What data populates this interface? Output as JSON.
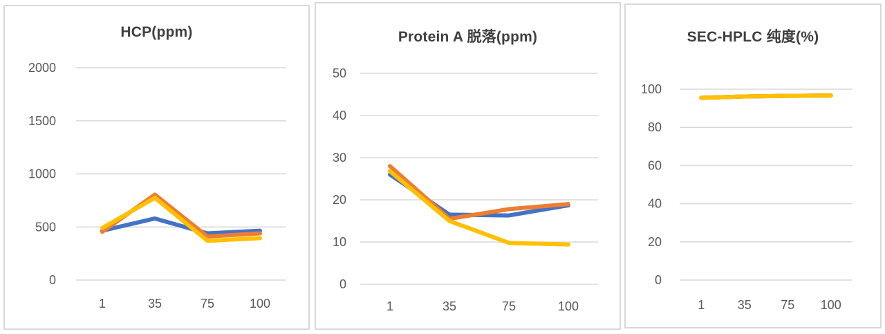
{
  "style": {
    "grid_color": "#d9d9d9",
    "tick_color": "#595959",
    "title_color": "#3f3f3f",
    "series_blue": "#4472C4",
    "series_orange": "#ED7D31",
    "series_yellow": "#FFC000"
  },
  "chart_data": [
    {
      "type": "line",
      "title": "HCP(ppm)",
      "xlabel": "",
      "ylabel": "",
      "categories": [
        "1",
        "35",
        "75",
        "100"
      ],
      "yticks": [
        0,
        500,
        1000,
        1500,
        2000
      ],
      "ylim": [
        0,
        2000
      ],
      "grid": true,
      "legend_position": "none",
      "series": [
        {
          "name": "series-blue",
          "color": "#4472C4",
          "values": [
            465,
            580,
            440,
            465
          ]
        },
        {
          "name": "series-orange",
          "color": "#ED7D31",
          "values": [
            455,
            805,
            410,
            440
          ]
        },
        {
          "name": "series-yellow",
          "color": "#FFC000",
          "values": [
            490,
            775,
            370,
            395
          ]
        }
      ]
    },
    {
      "type": "line",
      "title": "Protein A 脱落(ppm)",
      "xlabel": "",
      "ylabel": "",
      "categories": [
        "1",
        "35",
        "75",
        "100"
      ],
      "yticks": [
        0,
        10,
        20,
        30,
        40,
        50
      ],
      "ylim": [
        0,
        50
      ],
      "grid": true,
      "legend_position": "none",
      "series": [
        {
          "name": "series-blue",
          "color": "#4472C4",
          "values": [
            26,
            16.5,
            16.3,
            18.7
          ]
        },
        {
          "name": "series-orange",
          "color": "#ED7D31",
          "values": [
            28,
            15.5,
            17.8,
            19
          ]
        },
        {
          "name": "series-yellow",
          "color": "#FFC000",
          "values": [
            26.8,
            15,
            9.8,
            9.4
          ]
        }
      ]
    },
    {
      "type": "line",
      "title": "SEC-HPLC 纯度(%)",
      "xlabel": "",
      "ylabel": "",
      "categories": [
        "1",
        "35",
        "75",
        "100"
      ],
      "yticks": [
        0,
        20,
        40,
        60,
        80,
        100
      ],
      "ylim": [
        0,
        100
      ],
      "grid": true,
      "legend_position": "none",
      "series": [
        {
          "name": "series-blue",
          "color": "#4472C4",
          "values": [
            95.5,
            96.2,
            96.5,
            96.7
          ]
        },
        {
          "name": "series-orange",
          "color": "#ED7D31",
          "values": [
            95.5,
            96.2,
            96.5,
            96.7
          ]
        },
        {
          "name": "series-yellow",
          "color": "#FFC000",
          "values": [
            95.5,
            96.2,
            96.5,
            96.7
          ]
        }
      ]
    }
  ]
}
